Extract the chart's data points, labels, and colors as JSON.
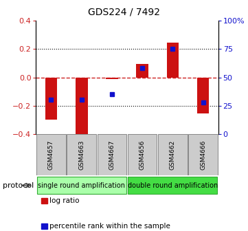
{
  "title": "GDS224 / 7492",
  "samples": [
    "GSM4657",
    "GSM4663",
    "GSM4667",
    "GSM4656",
    "GSM4662",
    "GSM4666"
  ],
  "log_ratio": [
    -0.3,
    -0.435,
    -0.01,
    0.095,
    0.245,
    -0.255
  ],
  "percentile_rank": [
    30,
    30,
    35,
    58,
    75,
    28
  ],
  "ylim_left": [
    -0.4,
    0.4
  ],
  "ylim_right": [
    0,
    100
  ],
  "bar_color": "#cc1111",
  "dot_color": "#1111cc",
  "protocol_groups": [
    {
      "label": "single round amplification",
      "samples": [
        0,
        1,
        2
      ],
      "color": "#aaffaa"
    },
    {
      "label": "double round amplification",
      "samples": [
        3,
        4,
        5
      ],
      "color": "#44dd44"
    }
  ],
  "yticks_left": [
    -0.4,
    -0.2,
    0.0,
    0.2,
    0.4
  ],
  "yticks_right": [
    0,
    25,
    50,
    75,
    100
  ],
  "dotted_lines": [
    -0.2,
    0.2
  ],
  "zero_line_color": "#cc2222",
  "bg_color": "#ffffff",
  "legend_log_ratio": "log ratio",
  "legend_percentile": "percentile rank within the sample",
  "protocol_label": "protocol",
  "title_fontsize": 10,
  "tick_fontsize": 8,
  "sample_fontsize": 6.5,
  "legend_fontsize": 7.5,
  "protocol_fontsize": 7,
  "bar_width": 0.4
}
